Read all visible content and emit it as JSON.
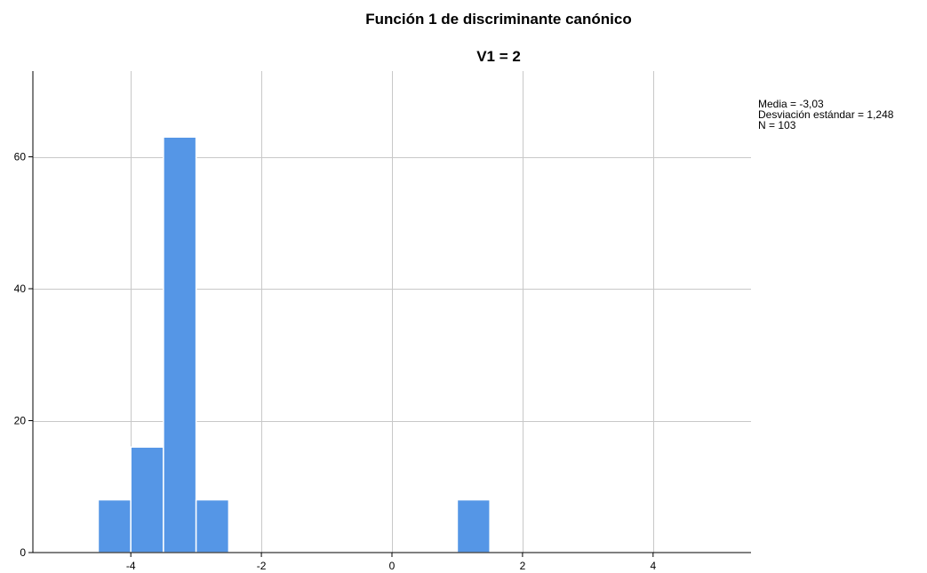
{
  "chart_data": {
    "type": "bar",
    "title": "Función 1 de discriminante canónico",
    "subtitle": "V1 = 2",
    "xlabel": "",
    "ylabel": "",
    "bin_width": 0.5,
    "bins": [
      {
        "start": -4.5,
        "end": -4.0,
        "count": 8
      },
      {
        "start": -4.0,
        "end": -3.5,
        "count": 16
      },
      {
        "start": -3.5,
        "end": -3.0,
        "count": 63
      },
      {
        "start": -3.0,
        "end": -2.5,
        "count": 8
      },
      {
        "start": 1.0,
        "end": 1.5,
        "count": 8
      }
    ],
    "xlim": [
      -5.5,
      5.5
    ],
    "ylim": [
      0,
      73
    ],
    "x_ticks": [
      -4,
      -2,
      0,
      2,
      4
    ],
    "x_tick_labels": [
      "-4",
      "-2",
      "0",
      "2",
      "4"
    ],
    "y_ticks": [
      0,
      20,
      40,
      60
    ],
    "y_tick_labels": [
      "0",
      "20",
      "40",
      "60"
    ],
    "grid": true,
    "bar_color": "#5596e6",
    "bar_edge_color": "#ffffff",
    "grid_color": "#c8c8c8",
    "stats": {
      "mean": "Media = -3,03",
      "std": "Desviación estándar = 1,248",
      "n": "N = 103"
    }
  }
}
